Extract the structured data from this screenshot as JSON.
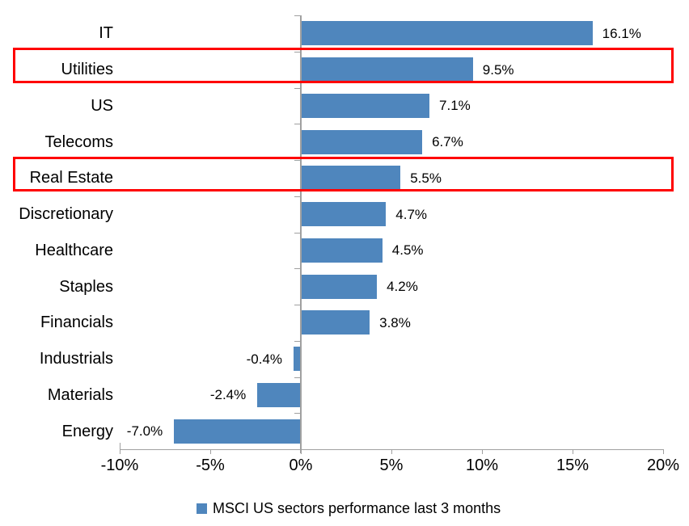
{
  "chart_data": {
    "type": "bar",
    "orientation": "horizontal",
    "title": "",
    "categories": [
      "IT",
      "Utilities",
      "US",
      "Telecoms",
      "Real Estate",
      "Discretionary",
      "Healthcare",
      "Staples",
      "Financials",
      "Industrials",
      "Materials",
      "Energy"
    ],
    "values": [
      16.1,
      9.5,
      7.1,
      6.7,
      5.5,
      4.7,
      4.5,
      4.2,
      3.8,
      -0.4,
      -2.4,
      -7.0
    ],
    "value_labels": [
      "16.1%",
      "9.5%",
      "7.1%",
      "6.7%",
      "5.5%",
      "4.7%",
      "4.5%",
      "4.2%",
      "3.8%",
      "-0.4%",
      "-2.4%",
      "-7.0%"
    ],
    "xlim": [
      -10,
      20
    ],
    "x_ticks": [
      -10,
      -5,
      0,
      5,
      10,
      15,
      20
    ],
    "x_tick_labels": [
      "-10%",
      "-5%",
      "0%",
      "5%",
      "10%",
      "15%",
      "20%"
    ],
    "grid": false,
    "legend": {
      "position": "bottom",
      "label": "MSCI US sectors performance last 3 months"
    },
    "highlighted_categories": [
      "Utilities",
      "Real Estate"
    ],
    "colors": {
      "bar": "#4f86bd",
      "highlight_box": "#ff0000",
      "axis": "#a0a0a0",
      "text": "#000000",
      "background": "#ffffff"
    }
  }
}
